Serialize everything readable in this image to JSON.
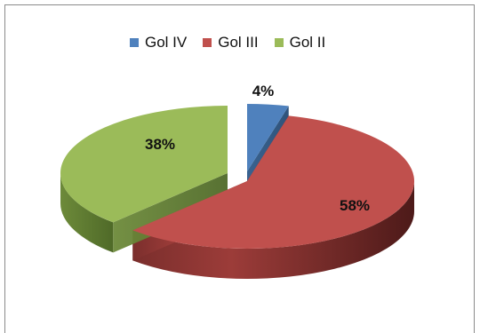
{
  "chart_data": {
    "type": "pie",
    "style": "3d-exploded",
    "title": "",
    "legend_position": "top",
    "series": [
      {
        "name": "Gol IV",
        "value": 4,
        "label": "4%",
        "color": "#4f81bd"
      },
      {
        "name": "Gol III",
        "value": 58,
        "label": "58%",
        "color": "#c0504d"
      },
      {
        "name": "Gol II",
        "value": 38,
        "label": "38%",
        "color": "#9bbb59"
      }
    ]
  }
}
